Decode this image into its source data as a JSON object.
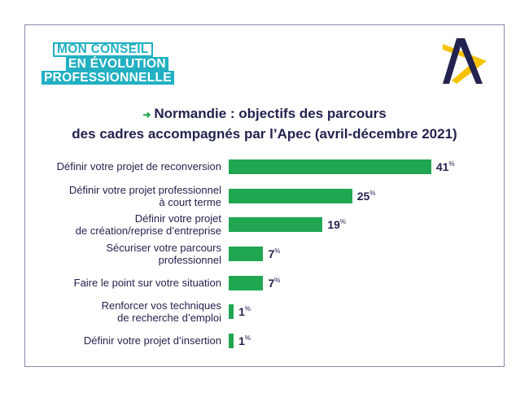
{
  "logo": {
    "line1": "MON CONSEIL",
    "line2": "EN ÉVOLUTION",
    "line3": "PROFESSIONNELLE",
    "brand_color": "#22b0c2"
  },
  "apec_logo": {
    "colors": [
      "#23234f",
      "#f7c300"
    ]
  },
  "chart_data": {
    "type": "bar",
    "orientation": "horizontal",
    "title_line1": "Normandie : objectifs des parcours",
    "title_line2": "des cadres accompagnés par l’Apec (avril-décembre 2021)",
    "categories": [
      "Définir votre projet de reconversion",
      "Définir votre projet professionnel\nà court terme",
      "Définir votre projet\nde création/reprise d’entreprise",
      "Sécuriser votre parcours\nprofessionnel",
      "Faire le point sur votre situation",
      "Renforcer vos techniques\nde recherche d’emploi",
      "Définir votre projet d’insertion"
    ],
    "values": [
      41,
      25,
      19,
      7,
      7,
      1,
      1
    ],
    "unit": "%",
    "bar_color": "#21a651",
    "grid": false
  }
}
